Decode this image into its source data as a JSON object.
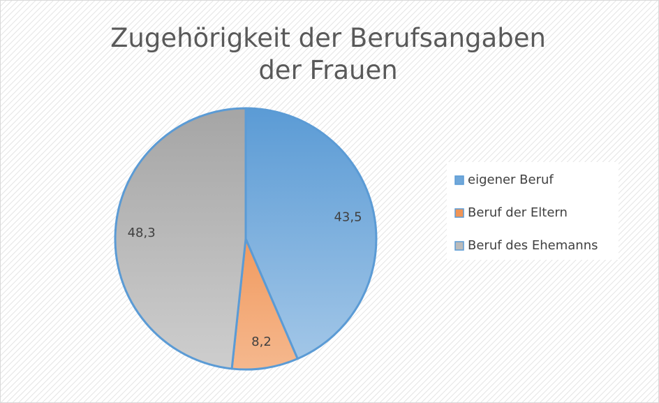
{
  "chart_data": {
    "type": "pie",
    "title": "Zugehörigkeit der Berufsangaben der Frauen",
    "categories": [
      "eigener Beruf",
      "Beruf der Eltern",
      "Beruf des Ehemanns"
    ],
    "values": [
      43.5,
      8.2,
      48.3
    ],
    "value_labels": [
      "43,5",
      "8,2",
      "48,3"
    ],
    "colors": [
      "#5b9bd5",
      "#ed7d31",
      "#a5a5a5"
    ],
    "legend": "right"
  }
}
